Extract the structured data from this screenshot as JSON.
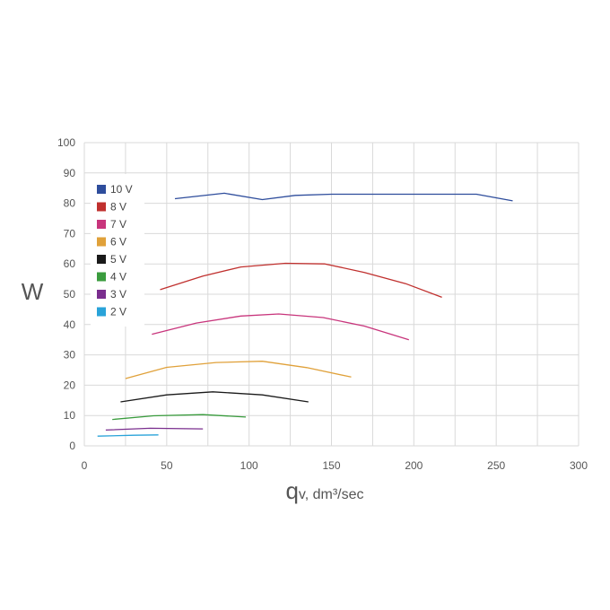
{
  "chart_data": {
    "type": "line",
    "ylabel": "W",
    "xlabel_main": "q",
    "xlabel_rest": "v, dm³/sec",
    "xlim": [
      0,
      300
    ],
    "ylim": [
      0,
      100
    ],
    "x_ticks": [
      "0",
      "50",
      "100",
      "150",
      "200",
      "250",
      "300"
    ],
    "y_ticks": [
      "0",
      "10",
      "20",
      "30",
      "40",
      "50",
      "60",
      "70",
      "80",
      "90",
      "100"
    ],
    "grid": true,
    "legend_position": "top-left",
    "series": [
      {
        "name": "10 V",
        "color": "#2e4d9c",
        "points": [
          [
            55,
            81.5
          ],
          [
            85,
            83.3
          ],
          [
            108,
            81.2
          ],
          [
            128,
            82.6
          ],
          [
            150,
            83.0
          ],
          [
            238,
            83.0
          ],
          [
            260,
            80.8
          ]
        ]
      },
      {
        "name": "8 V",
        "color": "#c0302e",
        "points": [
          [
            46,
            51.5
          ],
          [
            72,
            56.0
          ],
          [
            95,
            59.0
          ],
          [
            122,
            60.2
          ],
          [
            146,
            60.0
          ],
          [
            170,
            57.2
          ],
          [
            195,
            53.5
          ],
          [
            217,
            49.0
          ]
        ]
      },
      {
        "name": "7 V",
        "color": "#c8357c",
        "points": [
          [
            41,
            36.8
          ],
          [
            68,
            40.5
          ],
          [
            95,
            42.8
          ],
          [
            118,
            43.5
          ],
          [
            145,
            42.3
          ],
          [
            170,
            39.5
          ],
          [
            197,
            35.0
          ]
        ]
      },
      {
        "name": "6 V",
        "color": "#e0a13a",
        "points": [
          [
            25,
            22.2
          ],
          [
            50,
            25.9
          ],
          [
            80,
            27.5
          ],
          [
            108,
            27.9
          ],
          [
            135,
            25.8
          ],
          [
            162,
            22.7
          ]
        ]
      },
      {
        "name": "5 V",
        "color": "#1a1a1a",
        "points": [
          [
            22,
            14.5
          ],
          [
            50,
            16.8
          ],
          [
            78,
            17.8
          ],
          [
            108,
            16.8
          ],
          [
            136,
            14.5
          ]
        ]
      },
      {
        "name": "4 V",
        "color": "#3a9c3e",
        "points": [
          [
            17,
            8.7
          ],
          [
            42,
            9.9
          ],
          [
            72,
            10.3
          ],
          [
            98,
            9.5
          ]
        ]
      },
      {
        "name": "3 V",
        "color": "#7a2e8e",
        "points": [
          [
            13,
            5.2
          ],
          [
            40,
            5.8
          ],
          [
            72,
            5.6
          ]
        ]
      },
      {
        "name": "2 V",
        "color": "#29a3d9",
        "points": [
          [
            8,
            3.2
          ],
          [
            30,
            3.5
          ],
          [
            45,
            3.6
          ]
        ]
      }
    ]
  }
}
